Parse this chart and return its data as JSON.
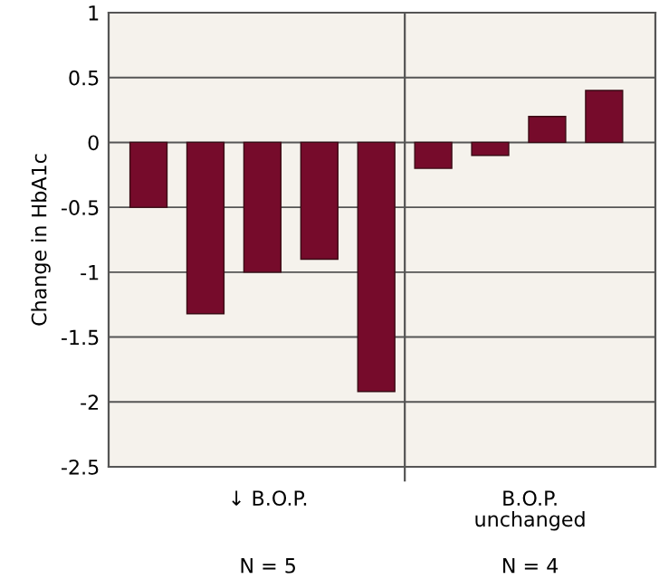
{
  "chart_data": {
    "type": "bar",
    "ylabel": "Change in HbA1c",
    "categories": [
      null,
      null,
      null,
      null,
      null,
      null,
      null,
      null,
      null
    ],
    "values": [
      -0.5,
      -1.32,
      -1.0,
      -0.9,
      -1.92,
      -0.2,
      -0.1,
      0.2,
      0.4
    ],
    "color": "#760b2b",
    "ylim": [
      -2.5,
      1
    ],
    "yticks": [
      -2.5,
      -2,
      -1.5,
      -1,
      -0.5,
      0,
      0.5,
      1
    ],
    "grid": "y",
    "annotations": [
      "↓ B.O.P.",
      "N = 5",
      "B.O.P.\nunchanged",
      "N = 4"
    ]
  }
}
